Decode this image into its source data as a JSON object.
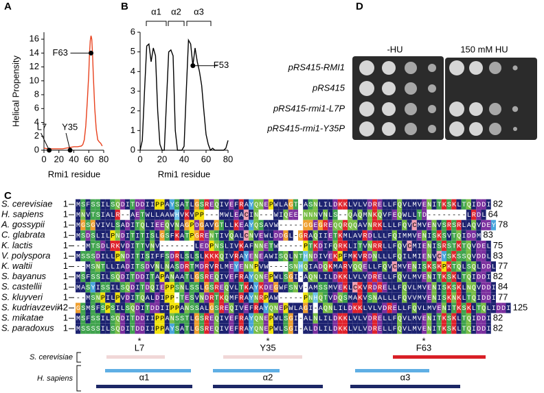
{
  "panel_labels": [
    "A",
    "B",
    "C",
    "D"
  ],
  "chart_data": [
    {
      "type": "line",
      "ylabel": "Helical Propensity",
      "xlabel": "Rmi1 residue",
      "color": "#e8401c",
      "x": [
        0,
        5,
        10,
        15,
        20,
        25,
        30,
        35,
        40,
        45,
        50,
        52,
        54,
        56,
        58,
        60,
        61,
        62,
        63,
        64,
        65,
        66,
        68,
        70,
        72,
        74,
        76,
        78
      ],
      "values": [
        0.3,
        0.2,
        0.2,
        0.2,
        0.2,
        0.2,
        0.3,
        0.4,
        0.5,
        0.5,
        0.6,
        0.8,
        1.5,
        3.5,
        7,
        11,
        14,
        15.8,
        16.5,
        16,
        14,
        11,
        6,
        3,
        1.5,
        1.2,
        1,
        0.6
      ],
      "xlim": [
        0,
        80
      ],
      "xticks": [
        0,
        20,
        40,
        60,
        80
      ],
      "ylim": [
        0,
        17
      ],
      "yticks": [
        0,
        2,
        4,
        6,
        8,
        10,
        12,
        14,
        16
      ],
      "points": [
        {
          "label": "L7",
          "x": 7,
          "y": 0
        },
        {
          "label": "Y35",
          "x": 35,
          "y": 0
        },
        {
          "label": "F63",
          "x": 63,
          "y": 14
        }
      ]
    },
    {
      "type": "line",
      "xlabel": "Rmi1 residue",
      "color": "#000000",
      "x": [
        0,
        2,
        4,
        6,
        8,
        10,
        12,
        14,
        16,
        18,
        20,
        22,
        24,
        26,
        28,
        30,
        32,
        34,
        36,
        38,
        40,
        42,
        44,
        46,
        48,
        50,
        52,
        54,
        56,
        58,
        60,
        62,
        64,
        66,
        68,
        70,
        72,
        74,
        76,
        78,
        80
      ],
      "values": [
        0,
        0.5,
        3,
        5.3,
        5.4,
        4.5,
        5.2,
        4.8,
        2,
        0.3,
        0,
        0,
        2.5,
        5,
        5.1,
        4.8,
        1,
        0,
        0,
        0,
        0.2,
        3,
        5.6,
        5.4,
        4.3,
        5.2,
        4.5,
        4,
        3.3,
        2,
        0.8,
        0.3,
        0,
        0.1,
        0,
        0,
        0,
        0,
        0,
        0.1,
        0.5
      ],
      "xlim": [
        0,
        80
      ],
      "xticks": [
        0,
        20,
        40,
        60,
        80
      ],
      "ylim": [
        0,
        6
      ],
      "yticks": [
        0,
        1,
        2,
        3,
        4,
        5,
        6
      ],
      "brackets": [
        "α1",
        "α2",
        "α3"
      ],
      "points": [
        {
          "label": "F53",
          "x": 48,
          "y": 4.3
        }
      ]
    }
  ],
  "alignment": {
    "rows": [
      {
        "species": "S. cerevisiae",
        "start": 1,
        "sequence": "MSFSSILSQDITDDIIPPAYSATLGSREQIVEFRAYQNEPWLAGT-ASNLILDKKLVLVDRELLFQVLMVENITKSKLTQIDDI",
        "end": 82
      },
      {
        "species": "H. sapiens",
        "start": 1,
        "sequence": "MNVTSIALR--AETWLLAAWHVKVPP---MWLEACIN---WIQEE-NNNVNLS--QAQMNKQVFEQWLLTD--------LRDL",
        "end": 64
      },
      {
        "species": "A. gossypii",
        "start": 1,
        "sequence": "MGSGVIVLSADITQLIEEQVNAGPDGAVGTLLKEAYQSAVW-----GGEGREQQRQQAVNRKLLLFQVCMVENVSRSRLAQVDEY",
        "end": 78
      },
      {
        "species": "C. glabrata",
        "start": 1,
        "sequence": "MSDSLILPNDITITISLGSFKATPGRENTIVQALCNVEWLDDGL-GRAQIIETKMLAVRDLLLFQIMMVENISKSVTQIDDM",
        "end": 83
      },
      {
        "species": "K. lactis",
        "start": 1,
        "sequence": "--MTSDLRKVDITTVNV-------LEDPNSLIVKAFNNETW-----PTKDIFQRKLITVNRRLLFQVCMIENISRSTKTQVDEL",
        "end": 75
      },
      {
        "species": "V. polyspora",
        "start": 1,
        "sequence": "MSSSDILLPNDITISIFFSDRLSLSLKKKQIVRAYENEAWISQLNTHNDIVEKPFMKVRDNLLLFQILMIENVCYSKSSQVDDL",
        "end": 83
      },
      {
        "species": "K. waltii",
        "start": 1,
        "sequence": "--MSNTLLIADITSDVNLNASDRTMDRVRLMEYENNPVW----SNHQIADQKMARVQQELLFQVCMVENISKSKPKTQLSQLDDL",
        "end": 77
      },
      {
        "species": "S. bayanus",
        "start": 1,
        "sequence": "MSFSSILSQDITDDITAPANAATLGSREQIVEFRAYQNEPWLSGI-AQNLILDKKLVLVDRELLFQVLMVENITKSKLTQIDDI",
        "end": 82
      },
      {
        "species": "S. castellii",
        "start": 1,
        "sequence": "MASYISSILSQDITDQIEPPSNLSSLGSREQVLTKAYKDEGWFSNV-AMSSMVEKLCKVRDRELLFQVLMVENISKSKLNQVDDI",
        "end": 84
      },
      {
        "species": "S. kluyveri",
        "start": 1,
        "sequence": "--MSNPILPVDITQALDIPP-TESVNDRTKQMFRAYNRPAW-----PNHQTVDQSMAKVSNALLLFQVVMVENISKNKLTQIDDI",
        "end": 77
      },
      {
        "species": "S. kudriavzevii",
        "start": 42,
        "sequence": "GSMSFSPSILSQDITDDIIPPANSSALGSREQIVEFRAYQNEPWLAGI-AQNLILDKKLVLVDRELLFQVLMVENITKSKLTQLIDDI",
        "end": 125
      },
      {
        "species": "S. mikatae",
        "start": 1,
        "sequence": "MSFSSILSQDITDDIIPPANSSTLGSREQIVEFRAYQNEPWLSGI-ALNLILDKKLVLVDRELLFQVLMVENITKSKLTQIDDI",
        "end": 82
      },
      {
        "species": "S. paradoxus",
        "start": 1,
        "sequence": "MSSSSILSQDITDDIIPPAYSATLGSREQIVEFRAYQNEPWLSGI-ALDLILDKKLVLVDRELLFQVLMVENITKSKLTQIDDI",
        "end": 82
      }
    ],
    "markers": [
      {
        "star": "*",
        "label": "L7"
      },
      {
        "star": "*",
        "label": "Y35"
      },
      {
        "star": "*",
        "label": "F63"
      }
    ],
    "tracks": [
      "S. cerevisiae",
      "H. sapiens"
    ],
    "helices": [
      "α1",
      "α2",
      "α3"
    ]
  },
  "spot_assay": {
    "conditions": [
      "-HU",
      "150 mM HU"
    ],
    "strains": [
      "pRS415-RMI1",
      "pRS415",
      "pRS415-rmi1-L7P",
      "pRS415-rmi1-Y35P"
    ]
  }
}
